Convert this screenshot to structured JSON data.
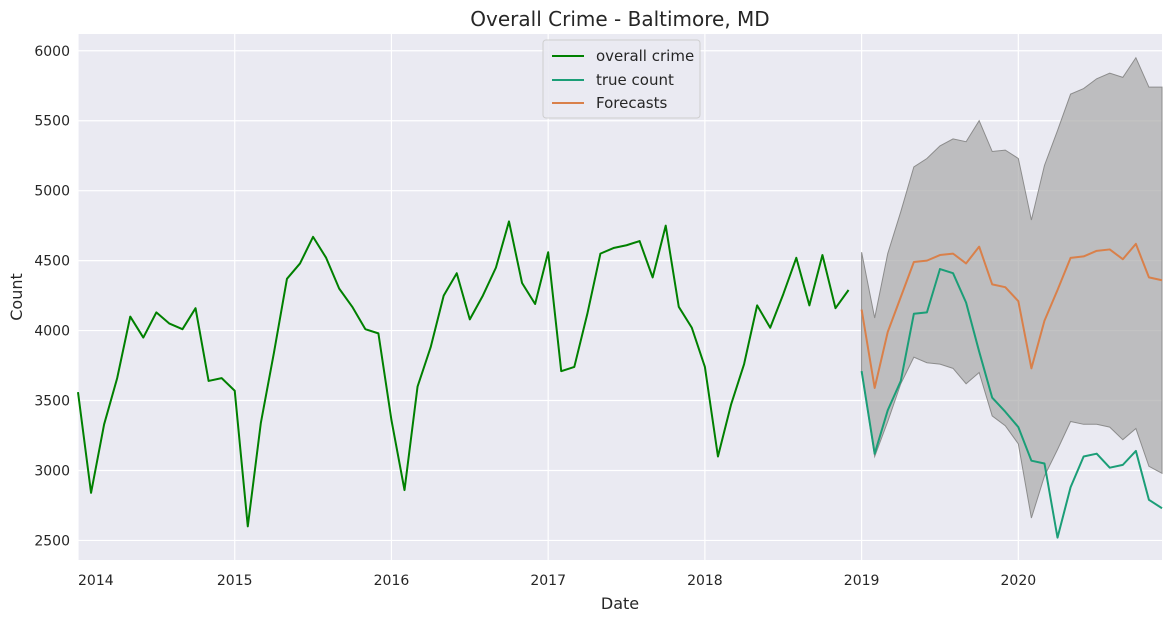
{
  "chart_data": {
    "type": "line",
    "title": "Overall Crime - Baltimore, MD",
    "xlabel": "Date",
    "ylabel": "Count",
    "xlim": [
      "2014-01",
      "2020-12"
    ],
    "ylim": [
      2360,
      6120
    ],
    "x_ticks": [
      "2014",
      "2015",
      "2016",
      "2017",
      "2018",
      "2019",
      "2020"
    ],
    "y_ticks": [
      2500,
      3000,
      3500,
      4000,
      4500,
      5000,
      5500,
      6000
    ],
    "grid": true,
    "legend_position": "top-center",
    "colors": {
      "background": "#eaeaf2",
      "grid": "#ffffff",
      "overall_crime": "#008000",
      "true_count": "#1b9e77",
      "forecasts": "#d9804a",
      "confidence_band": "#a9a9a9"
    },
    "series": [
      {
        "name": "overall crime",
        "start": "2014-01",
        "values": [
          3560,
          2840,
          3330,
          3660,
          4100,
          3950,
          4130,
          4050,
          4010,
          4160,
          3640,
          3660,
          3570,
          2600,
          3340,
          3840,
          4370,
          4480,
          4670,
          4520,
          4300,
          4170,
          4010,
          3980,
          3360,
          2860,
          3600,
          3880,
          4250,
          4410,
          4080,
          4250,
          4450,
          4780,
          4340,
          4190,
          4560,
          3710,
          3740,
          4120,
          4550,
          4590,
          4610,
          4640,
          4380,
          4750,
          4170,
          4020,
          3740,
          3100,
          3470,
          3760,
          4180,
          4020,
          4260,
          4520,
          4180,
          4540,
          4160,
          4290
        ]
      },
      {
        "name": "true count",
        "start": "2019-01",
        "values": [
          3710,
          3120,
          3430,
          3640,
          4120,
          4130,
          4440,
          4410,
          4200,
          3850,
          3520,
          3420,
          3310,
          3070,
          3050,
          2520,
          2880,
          3100,
          3120,
          3020,
          3040,
          3140,
          2790,
          2730
        ]
      },
      {
        "name": "Forecasts",
        "start": "2019-01",
        "values": [
          4150,
          3590,
          3990,
          4240,
          4490,
          4500,
          4540,
          4550,
          4480,
          4600,
          4330,
          4310,
          4210,
          3730,
          4070,
          4290,
          4520,
          4530,
          4570,
          4580,
          4510,
          4620,
          4380,
          4360
        ],
        "lower": [
          3700,
          3100,
          3350,
          3620,
          3810,
          3770,
          3760,
          3730,
          3620,
          3700,
          3390,
          3320,
          3190,
          2660,
          2960,
          3150,
          3350,
          3330,
          3330,
          3310,
          3220,
          3300,
          3030,
          2980
        ],
        "upper": [
          4560,
          4090,
          4550,
          4850,
          5170,
          5230,
          5320,
          5370,
          5350,
          5500,
          5280,
          5290,
          5230,
          4790,
          5180,
          5430,
          5690,
          5730,
          5800,
          5840,
          5810,
          5950,
          5740,
          5740
        ]
      }
    ]
  }
}
